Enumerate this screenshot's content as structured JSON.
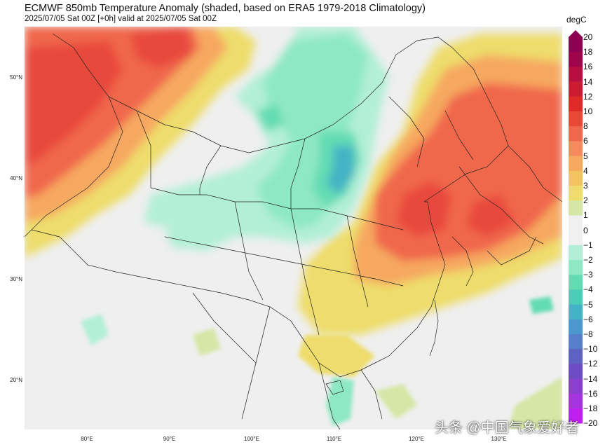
{
  "header": {
    "title": "ECMWF 850mb Temperature Anomaly (shaded, based on ERA5 1979-2018 Climatology)",
    "subtitle": "2025/07/05 Sat 00Z [+0h] valid at 2025/07/05 Sat 00Z"
  },
  "map": {
    "lat_labels": [
      {
        "text": "50°N",
        "lat": 50
      },
      {
        "text": "40°N",
        "lat": 40
      },
      {
        "text": "30°N",
        "lat": 30
      },
      {
        "text": "20°N",
        "lat": 20
      }
    ],
    "lon_labels": [
      {
        "text": "80°E",
        "lon": 80
      },
      {
        "text": "90°E",
        "lon": 90
      },
      {
        "text": "100°E",
        "lon": 100
      },
      {
        "text": "110°E",
        "lon": 110
      },
      {
        "text": "120°E",
        "lon": 120
      },
      {
        "text": "130°E",
        "lon": 130
      }
    ]
  },
  "colorbar": {
    "unit": "degC",
    "ticks": [
      "20",
      "18",
      "16",
      "14",
      "12",
      "10",
      "8",
      "6",
      "5",
      "4",
      "3",
      "2",
      "1",
      "0",
      "−1",
      "−2",
      "−3",
      "−4",
      "−5",
      "−6",
      "−8",
      "−10",
      "−12",
      "−14",
      "−16",
      "−18",
      "−20"
    ],
    "colors": [
      "#8e0152",
      "#a0044a",
      "#b90f40",
      "#cd1c32",
      "#e02a28",
      "#ea4a35",
      "#f0674c",
      "#f58a5c",
      "#f6a860",
      "#f3c35f",
      "#eedd6c",
      "#d6e6a6",
      "#f0f0f0",
      "#f0f0f0",
      "#b3efd8",
      "#8ee8c4",
      "#64dcb3",
      "#4ccdb7",
      "#44b3c5",
      "#4a98cf",
      "#567ecb",
      "#5e63c2",
      "#6b4cc2",
      "#8a3fd0",
      "#a534df",
      "#bf1ff0"
    ]
  },
  "watermark": "头条 @中国气象爱好者"
}
